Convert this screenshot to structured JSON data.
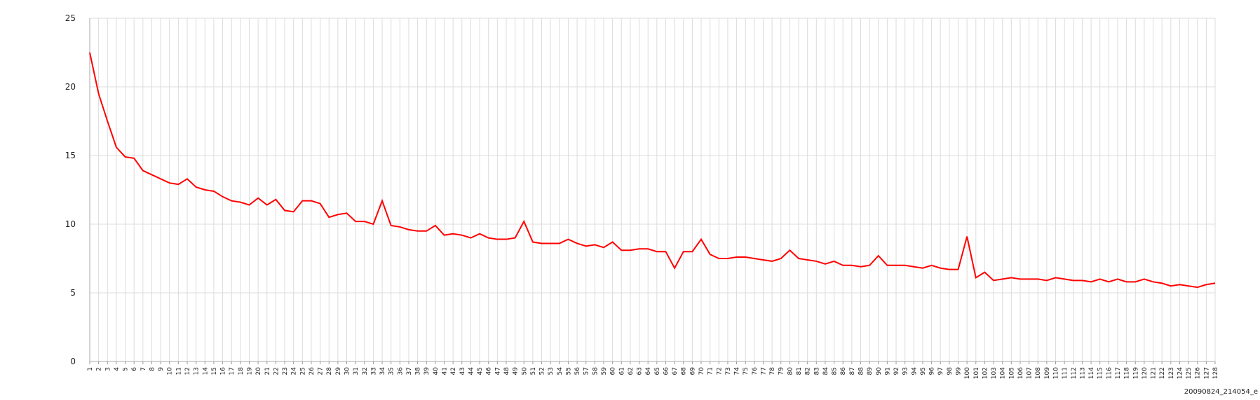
{
  "chart_data": {
    "type": "line",
    "categories": [
      "1",
      "2",
      "3",
      "4",
      "5",
      "6",
      "7",
      "8",
      "9",
      "10",
      "11",
      "12",
      "13",
      "14",
      "15",
      "16",
      "17",
      "18",
      "19",
      "20",
      "21",
      "22",
      "23",
      "24",
      "25",
      "26",
      "27",
      "28",
      "29",
      "30",
      "31",
      "32",
      "33",
      "34",
      "35",
      "36",
      "37",
      "38",
      "39",
      "40",
      "41",
      "42",
      "43",
      "44",
      "45",
      "46",
      "47",
      "48",
      "49",
      "50",
      "51",
      "52",
      "53",
      "54",
      "55",
      "56",
      "57",
      "58",
      "59",
      "60",
      "61",
      "62",
      "63",
      "64",
      "65",
      "66",
      "67",
      "68",
      "69",
      "70",
      "71",
      "72",
      "73",
      "74",
      "75",
      "76",
      "77",
      "78",
      "79",
      "80",
      "81",
      "82",
      "83",
      "84",
      "85",
      "86",
      "87",
      "88",
      "89",
      "90",
      "91",
      "92",
      "93",
      "94",
      "95",
      "96",
      "97",
      "98",
      "99",
      "100",
      "101",
      "102",
      "103",
      "104",
      "105",
      "106",
      "107",
      "108",
      "109",
      "110",
      "111",
      "112",
      "113",
      "114",
      "115",
      "116",
      "117",
      "118",
      "119",
      "120",
      "121",
      "122",
      "123",
      "124",
      "125",
      "126",
      "127",
      "128"
    ],
    "values": [
      22.5,
      19.5,
      17.5,
      15.6,
      14.9,
      14.8,
      13.9,
      13.6,
      13.3,
      13.0,
      12.9,
      13.3,
      12.7,
      12.5,
      12.4,
      12.0,
      11.7,
      11.6,
      11.4,
      11.9,
      11.4,
      11.8,
      11.0,
      10.9,
      11.7,
      11.7,
      11.5,
      10.5,
      10.7,
      10.8,
      10.2,
      10.2,
      10.0,
      11.7,
      9.9,
      9.8,
      9.6,
      9.5,
      9.5,
      9.9,
      9.2,
      9.3,
      9.2,
      9.0,
      9.3,
      9.0,
      8.9,
      8.9,
      9.0,
      10.2,
      8.7,
      8.6,
      8.6,
      8.6,
      8.9,
      8.6,
      8.4,
      8.5,
      8.3,
      8.7,
      8.1,
      8.1,
      8.2,
      8.2,
      8.0,
      8.0,
      6.8,
      8.0,
      8.0,
      8.9,
      7.8,
      7.5,
      7.5,
      7.6,
      7.6,
      7.5,
      7.4,
      7.3,
      7.5,
      8.1,
      7.5,
      7.4,
      7.3,
      7.1,
      7.3,
      7.0,
      7.0,
      6.9,
      7.0,
      7.7,
      7.0,
      7.0,
      7.0,
      6.9,
      6.8,
      7.0,
      6.8,
      6.7,
      6.7,
      9.1,
      6.1,
      6.5,
      5.9,
      6.0,
      6.1,
      6.0,
      6.0,
      6.0,
      5.9,
      6.1,
      6.0,
      5.9,
      5.9,
      5.8,
      6.0,
      5.8,
      6.0,
      5.8,
      5.8,
      6.0,
      5.8,
      5.7,
      5.5,
      5.6,
      5.5,
      5.4,
      5.6,
      5.7
    ],
    "color": "#ff0000",
    "ylim": [
      0,
      25
    ],
    "yticks": [
      0,
      5,
      10,
      15,
      20,
      25
    ],
    "grid": true,
    "caption": "20090824_214054_e"
  }
}
